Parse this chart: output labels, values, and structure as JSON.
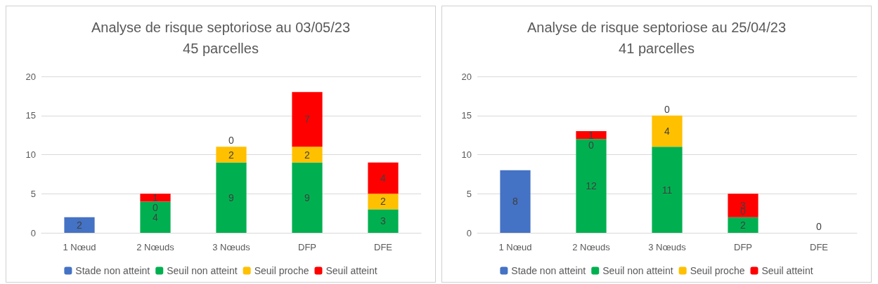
{
  "chart_data": [
    {
      "type": "bar",
      "title": "Analyse de risque septoriose au 03/05/23\n45 parcelles",
      "categories": [
        "1 Nœud",
        "2 Nœuds",
        "3 Nœuds",
        "DFP",
        "DFE"
      ],
      "stacked": true,
      "ylim": [
        0,
        20
      ],
      "yticks": [
        0,
        5,
        10,
        15,
        20
      ],
      "grid": "y",
      "legend": "bottom",
      "series": [
        {
          "name": "Stade non atteint",
          "color": "#4472c4",
          "values": [
            2,
            null,
            null,
            null,
            null
          ],
          "value_labels": [
            "2",
            null,
            null,
            null,
            null
          ]
        },
        {
          "name": "Seuil non atteint",
          "color": "#00b050",
          "values": [
            null,
            4,
            9,
            9,
            3
          ],
          "value_labels": [
            null,
            "4",
            "9",
            "9",
            "3"
          ]
        },
        {
          "name": "Seuil proche",
          "color": "#ffc000",
          "values": [
            null,
            0,
            2,
            2,
            2
          ],
          "value_labels": [
            null,
            "0",
            "2",
            "2",
            "2"
          ]
        },
        {
          "name": "Seuil atteint",
          "color": "#ff0000",
          "values": [
            null,
            1,
            0,
            7,
            4
          ],
          "value_labels": [
            null,
            "1",
            "0",
            "7",
            "4"
          ]
        }
      ]
    },
    {
      "type": "bar",
      "title": "Analyse de risque septoriose au 25/04/23\n41 parcelles",
      "categories": [
        "1 Nœud",
        "2 Nœuds",
        "3 Nœuds",
        "DFP",
        "DFE"
      ],
      "stacked": true,
      "ylim": [
        0,
        20
      ],
      "yticks": [
        0,
        5,
        10,
        15,
        20
      ],
      "grid": "y",
      "legend": "bottom",
      "series": [
        {
          "name": "Stade non atteint",
          "color": "#4472c4",
          "values": [
            8,
            null,
            null,
            null,
            null
          ],
          "value_labels": [
            "8",
            null,
            null,
            null,
            null
          ]
        },
        {
          "name": "Seuil non atteint",
          "color": "#00b050",
          "values": [
            null,
            12,
            11,
            2,
            0
          ],
          "value_labels": [
            null,
            "12",
            "11",
            "2",
            "0"
          ]
        },
        {
          "name": "Seuil proche",
          "color": "#ffc000",
          "values": [
            null,
            0,
            4,
            0,
            0
          ],
          "value_labels": [
            null,
            "0",
            "4",
            "0",
            null
          ]
        },
        {
          "name": "Seuil atteint",
          "color": "#ff0000",
          "values": [
            null,
            1,
            0,
            3,
            0
          ],
          "value_labels": [
            null,
            "1",
            "0",
            "3",
            null
          ]
        }
      ]
    }
  ]
}
